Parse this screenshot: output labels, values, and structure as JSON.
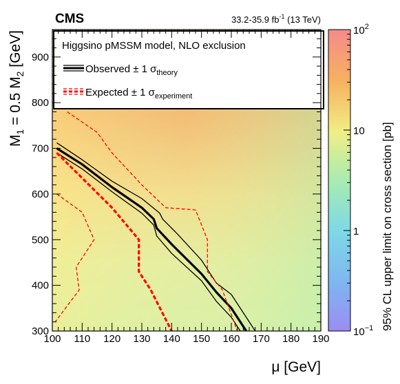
{
  "header": {
    "experiment": "CMS",
    "lumi_prefix": "33.2-35.9 fb",
    "lumi_exp": "-1",
    "lumi_suffix": " (13 TeV)"
  },
  "legend": {
    "title": "Higgsino pMSSM model, NLO exclusion",
    "observed_text": "Observed ± 1 σ",
    "observed_sub": "theory",
    "expected_text": "Expected ± 1 σ",
    "expected_sub": "experiment"
  },
  "axes": {
    "x_label": "μ [GeV]",
    "y_label_main": "M",
    "y_label_sub1": "1",
    "y_label_mid": " = 0.5 M",
    "y_label_sub2": "2",
    "y_label_unit": " [GeV]",
    "z_label": "95% CL upper limit on cross section [pb]"
  },
  "chart_data": {
    "type": "heatmap",
    "xlim": [
      100,
      190
    ],
    "ylim": [
      300,
      960
    ],
    "x_ticks": [
      100,
      110,
      120,
      130,
      140,
      150,
      160,
      170,
      180,
      190
    ],
    "y_ticks": [
      300,
      400,
      500,
      600,
      700,
      800,
      900
    ],
    "z_scale": "log",
    "zlim": [
      0.1,
      100
    ],
    "z_ticks": [
      {
        "value": 0.1,
        "base": "10",
        "exp": "−1"
      },
      {
        "value": 1,
        "base": "1",
        "exp": ""
      },
      {
        "value": 10,
        "base": "10",
        "exp": ""
      },
      {
        "value": 100,
        "base": "10",
        "exp": "2"
      }
    ],
    "colors": {
      "observed": "#000000",
      "expected": "#ff0000"
    },
    "contours": [
      {
        "id": "observed",
        "style": "solid",
        "weight": "thick",
        "points": [
          [
            101.5,
            700
          ],
          [
            110,
            665
          ],
          [
            120,
            615
          ],
          [
            130,
            570
          ],
          [
            134,
            545
          ],
          [
            135,
            525
          ],
          [
            140,
            490
          ],
          [
            150,
            425
          ],
          [
            155,
            385
          ],
          [
            160,
            350
          ],
          [
            165,
            300
          ]
        ]
      },
      {
        "id": "observed-plus",
        "style": "solid",
        "weight": "thin",
        "points": [
          [
            101.5,
            712
          ],
          [
            110,
            675
          ],
          [
            120,
            628
          ],
          [
            130,
            590
          ],
          [
            136,
            558
          ],
          [
            137,
            545
          ],
          [
            142,
            512
          ],
          [
            150,
            455
          ],
          [
            155,
            405
          ],
          [
            160,
            380
          ],
          [
            168,
            300
          ]
        ]
      },
      {
        "id": "observed-minus",
        "style": "solid",
        "weight": "thin",
        "points": [
          [
            101.5,
            690
          ],
          [
            110,
            655
          ],
          [
            120,
            605
          ],
          [
            130,
            558
          ],
          [
            134,
            532
          ],
          [
            135,
            508
          ],
          [
            140,
            470
          ],
          [
            150,
            410
          ],
          [
            155,
            365
          ],
          [
            160,
            330
          ],
          [
            163,
            300
          ]
        ]
      },
      {
        "id": "expected",
        "style": "dashed",
        "weight": "thick",
        "points": [
          [
            101.5,
            690
          ],
          [
            110,
            635
          ],
          [
            120,
            570
          ],
          [
            129,
            500
          ],
          [
            129,
            430
          ],
          [
            133,
            390
          ],
          [
            140,
            300
          ]
        ]
      },
      {
        "id": "expected-plus",
        "style": "dashed",
        "weight": "thin",
        "points": [
          [
            105,
            780
          ],
          [
            115,
            735
          ],
          [
            120,
            690
          ],
          [
            130,
            620
          ],
          [
            138,
            570
          ],
          [
            148,
            565
          ],
          [
            152,
            500
          ],
          [
            152,
            430
          ],
          [
            157,
            390
          ],
          [
            162,
            300
          ]
        ]
      },
      {
        "id": "expected-minus-left",
        "style": "dashed",
        "weight": "thin",
        "points": [
          [
            101.5,
            600
          ],
          [
            110,
            560
          ],
          [
            114,
            500
          ],
          [
            108,
            440
          ],
          [
            109,
            390
          ],
          [
            101,
            320
          ]
        ]
      }
    ]
  }
}
